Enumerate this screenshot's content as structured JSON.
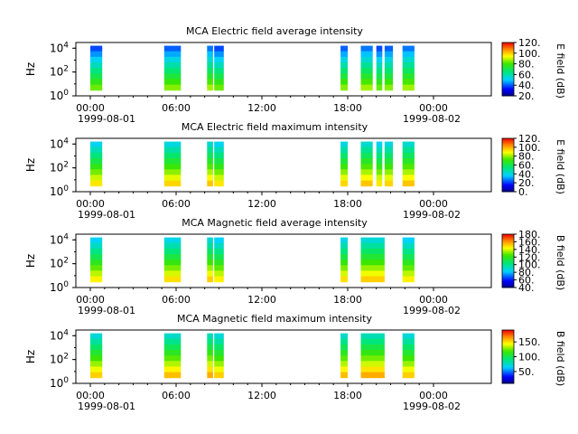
{
  "chart_data": [
    {
      "type": "heatmap",
      "title": "MCA  Electric field average intensity",
      "ylabel": "Hz",
      "y_scale": "log",
      "ylim": [
        1,
        30000
      ],
      "y_ticks": [
        {
          "base": "10",
          "exp": "0"
        },
        {
          "base": "10",
          "exp": "2"
        },
        {
          "base": "10",
          "exp": "4"
        }
      ],
      "xlim": [
        "1999-08-01 00:00",
        "1999-08-02 00:00"
      ],
      "x_ticks": [
        "00:00",
        "06:00",
        "12:00",
        "18:00",
        "00:00"
      ],
      "x_date_labels": [
        "1999-08-01",
        "1999-08-02"
      ],
      "colorbar": {
        "label": "E field (dB)",
        "range": [
          20,
          120
        ],
        "ticks": [
          "20.",
          "40.",
          "60.",
          "80.",
          "100.",
          "120."
        ],
        "colormap": "rainbow"
      },
      "data_intervals": [
        [
          "00:00",
          "00:50"
        ],
        [
          "05:10",
          "06:20"
        ],
        [
          "08:10",
          "08:35"
        ],
        [
          "08:40",
          "09:20"
        ],
        [
          "17:30",
          "18:00"
        ],
        [
          "18:55",
          "19:45"
        ],
        [
          "20:00",
          "20:25"
        ],
        [
          "20:35",
          "21:10"
        ],
        [
          "21:50",
          "22:40"
        ]
      ],
      "typical_level_db": 65
    },
    {
      "type": "heatmap",
      "title": "MCA  Electric field maximum intensity",
      "ylabel": "Hz",
      "y_scale": "log",
      "ylim": [
        1,
        30000
      ],
      "y_ticks": [
        {
          "base": "10",
          "exp": "0"
        },
        {
          "base": "10",
          "exp": "2"
        },
        {
          "base": "10",
          "exp": "4"
        }
      ],
      "xlim": [
        "1999-08-01 00:00",
        "1999-08-02 00:00"
      ],
      "x_ticks": [
        "00:00",
        "06:00",
        "12:00",
        "18:00",
        "00:00"
      ],
      "x_date_labels": [
        "1999-08-01",
        "1999-08-02"
      ],
      "colorbar": {
        "label": "E field (dB)",
        "range": [
          0,
          120
        ],
        "ticks": [
          "0.",
          "20.",
          "40.",
          "60.",
          "80.",
          "100.",
          "120."
        ],
        "colormap": "rainbow"
      },
      "data_intervals": [
        [
          "00:00",
          "00:50"
        ],
        [
          "05:10",
          "06:20"
        ],
        [
          "08:10",
          "08:35"
        ],
        [
          "08:40",
          "09:20"
        ],
        [
          "17:30",
          "18:00"
        ],
        [
          "18:55",
          "19:45"
        ],
        [
          "20:00",
          "20:25"
        ],
        [
          "20:35",
          "21:10"
        ],
        [
          "21:50",
          "22:40"
        ]
      ],
      "typical_level_db": 70
    },
    {
      "type": "heatmap",
      "title": "MCA  Magnetic field average intensity",
      "ylabel": "Hz",
      "y_scale": "log",
      "ylim": [
        1,
        30000
      ],
      "y_ticks": [
        {
          "base": "10",
          "exp": "0"
        },
        {
          "base": "10",
          "exp": "2"
        },
        {
          "base": "10",
          "exp": "4"
        }
      ],
      "xlim": [
        "1999-08-01 00:00",
        "1999-08-02 00:00"
      ],
      "x_ticks": [
        "00:00",
        "06:00",
        "12:00",
        "18:00",
        "00:00"
      ],
      "x_date_labels": [
        "1999-08-01",
        "1999-08-02"
      ],
      "colorbar": {
        "label": "B field (dB)",
        "range": [
          40,
          180
        ],
        "ticks": [
          "40.",
          "60.",
          "80.",
          "100.",
          "120.",
          "140.",
          "160.",
          "180."
        ],
        "colormap": "rainbow"
      },
      "data_intervals": [
        [
          "00:00",
          "00:50"
        ],
        [
          "05:10",
          "06:20"
        ],
        [
          "08:10",
          "08:35"
        ],
        [
          "08:40",
          "09:20"
        ],
        [
          "17:30",
          "18:00"
        ],
        [
          "18:55",
          "20:35"
        ],
        [
          "21:50",
          "22:40"
        ]
      ],
      "typical_level_db": 120
    },
    {
      "type": "heatmap",
      "title": "MCA  Magnetic field maximum intensity",
      "ylabel": "Hz",
      "y_scale": "log",
      "ylim": [
        1,
        30000
      ],
      "y_ticks": [
        {
          "base": "10",
          "exp": "0"
        },
        {
          "base": "10",
          "exp": "2"
        },
        {
          "base": "10",
          "exp": "4"
        }
      ],
      "xlim": [
        "1999-08-01 00:00",
        "1999-08-02 00:00"
      ],
      "x_ticks": [
        "00:00",
        "06:00",
        "12:00",
        "18:00",
        "00:00"
      ],
      "x_date_labels": [
        "1999-08-01",
        "1999-08-02"
      ],
      "colorbar": {
        "label": "B field (dB)",
        "range": [
          10,
          190
        ],
        "ticks": [
          "50.",
          "100.",
          "150."
        ],
        "colormap": "rainbow"
      },
      "data_intervals": [
        [
          "00:00",
          "00:50"
        ],
        [
          "05:10",
          "06:20"
        ],
        [
          "08:10",
          "08:35"
        ],
        [
          "08:40",
          "09:20"
        ],
        [
          "17:30",
          "18:00"
        ],
        [
          "18:55",
          "20:35"
        ],
        [
          "21:50",
          "22:40"
        ]
      ],
      "typical_level_db": 120
    }
  ]
}
